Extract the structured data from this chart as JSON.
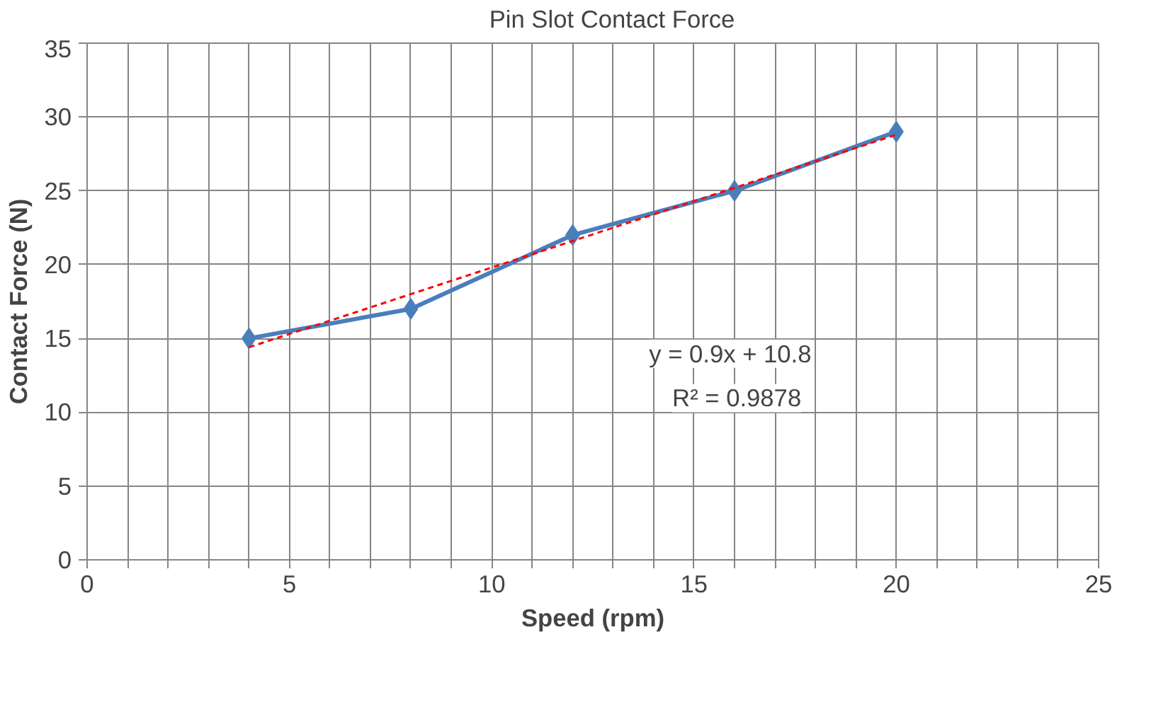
{
  "chart_data": {
    "type": "line",
    "xlabel": "Speed (rpm)",
    "ylabel": "Contact Force (N)",
    "x": [
      4,
      8,
      12,
      16,
      20
    ],
    "series": [
      {
        "name": "Pin Slot Contact Force",
        "color": "#4a7ebb",
        "values": [
          15,
          17,
          22,
          25,
          29
        ],
        "marker": "diamond",
        "line_style": "solid"
      },
      {
        "type": "line",
        "x": [
          4,
          20
        ],
        "color": "#ff0000",
        "values": [
          14.4,
          28.8
        ],
        "marker": "none",
        "line_style": "dashed"
      }
    ],
    "annotations": [
      "y = 0.9x + 10.8",
      "R² = 0.9878"
    ],
    "xlim": [
      0,
      25
    ],
    "ylim": [
      0,
      35
    ],
    "xticks": [
      0,
      {
        "value": 1,
        "label": null
      },
      {
        "value": 2,
        "label": null
      },
      {
        "value": 3,
        "label": null
      },
      {
        "value": 4,
        "label": null
      },
      5,
      {
        "value": 6,
        "label": null
      },
      {
        "value": 7,
        "label": null
      },
      {
        "value": 8,
        "label": null
      },
      {
        "value": 9,
        "label": null
      },
      10,
      {
        "value": 11,
        "label": null
      },
      {
        "value": 12,
        "label": null
      },
      {
        "value": 13,
        "label": null
      },
      {
        "value": 14,
        "label": null
      },
      15,
      {
        "value": 16,
        "label": null
      },
      {
        "value": 17,
        "label": null
      },
      {
        "value": 18,
        "label": null
      },
      {
        "value": 19,
        "label": null
      },
      20,
      {
        "value": 21,
        "label": null
      },
      {
        "value": 22,
        "label": null
      },
      {
        "value": 23,
        "label": null
      },
      {
        "value": 24,
        "label": null
      },
      25
    ],
    "yticks": [
      0,
      5,
      10,
      15,
      20,
      25,
      30,
      35
    ],
    "grid": true,
    "legend": "top"
  }
}
